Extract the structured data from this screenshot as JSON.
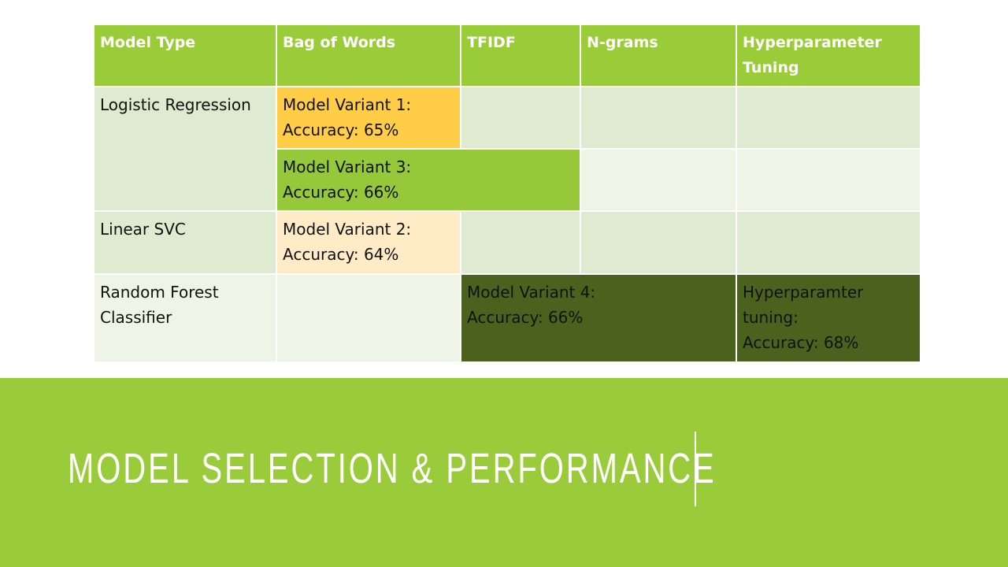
{
  "slide": {
    "title": "Model Selection & Performance"
  },
  "table": {
    "headers": [
      "Model Type",
      "Bag of Words",
      "TFIDF",
      "N-grams",
      "Hyperparameter Tuning"
    ],
    "rows": {
      "logistic_regression": "Logistic Regression",
      "linear_svc": "Linear SVC",
      "random_forest": "Random Forest Classifier"
    },
    "variants": {
      "v1_name": "Model Variant 1:",
      "v1_accuracy": "Accuracy: 65%",
      "v2_name": "Model Variant 2:",
      "v2_accuracy": "Accuracy: 64%",
      "v3_name": "Model Variant 3:",
      "v3_accuracy": "Accuracy: 66%",
      "v4_name": "Model Variant 4:",
      "v4_accuracy": "Accuracy: 66%",
      "hp_name": "Hyperparamter tuning:",
      "hp_accuracy": "Accuracy: 68%"
    }
  },
  "colors": {
    "header_green": "#9acc3a",
    "banner_green": "#9acb3a",
    "light_green": "#dfebd0",
    "lighter_green": "#eef5e6",
    "amber": "#ffcd46",
    "cream": "#ffecc6",
    "medium_green": "#95c93a",
    "dark_olive": "#4a621d"
  }
}
